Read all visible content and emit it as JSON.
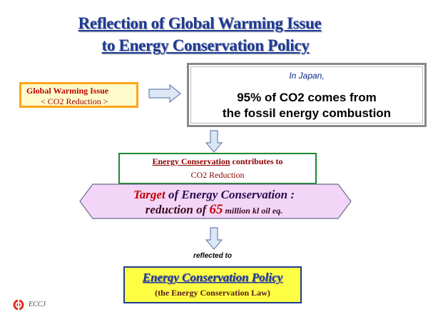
{
  "title": {
    "line1": "Reflection of Global Warming Issue",
    "line2": "to  Energy Conservation Policy"
  },
  "global_warming_box": {
    "line1": "Global Warming Issue",
    "line2": "< CO2  Reduction >"
  },
  "japan_box": {
    "top": "In Japan,",
    "line1": "95% of CO2 comes from",
    "line2": "the fossil energy combustion"
  },
  "ec_box": {
    "line1_underlined": "Energy Conservation",
    "line1_rest": " contributes to",
    "line2": "CO2 Reduction"
  },
  "target_hexagon": {
    "line1_red": "Target",
    "line1_rest": " of Energy Conservation :",
    "line2_prefix": "reduction of ",
    "line2_number": "65",
    "line2_unit": " million kl oil eq."
  },
  "reflected_label": "reflected to",
  "policy_box": {
    "line1": "Energy Conservation Policy",
    "line2": "(the Energy Conservation Law)"
  },
  "logo": {
    "text": "ECCJ"
  },
  "colors": {
    "title": "#1f3a93",
    "gw_border": "#ffa51a",
    "gw_fill": "#fffccc",
    "ec_border": "#1d8a2e",
    "hex_fill": "#f3d6f7",
    "policy_fill": "#fdfd44",
    "arrow": "#8fa3c7"
  },
  "icons": {
    "right_arrow": "block-arrow-right-icon",
    "down_arrow": "block-arrow-down-icon",
    "logo": "eccj-logo-icon"
  }
}
